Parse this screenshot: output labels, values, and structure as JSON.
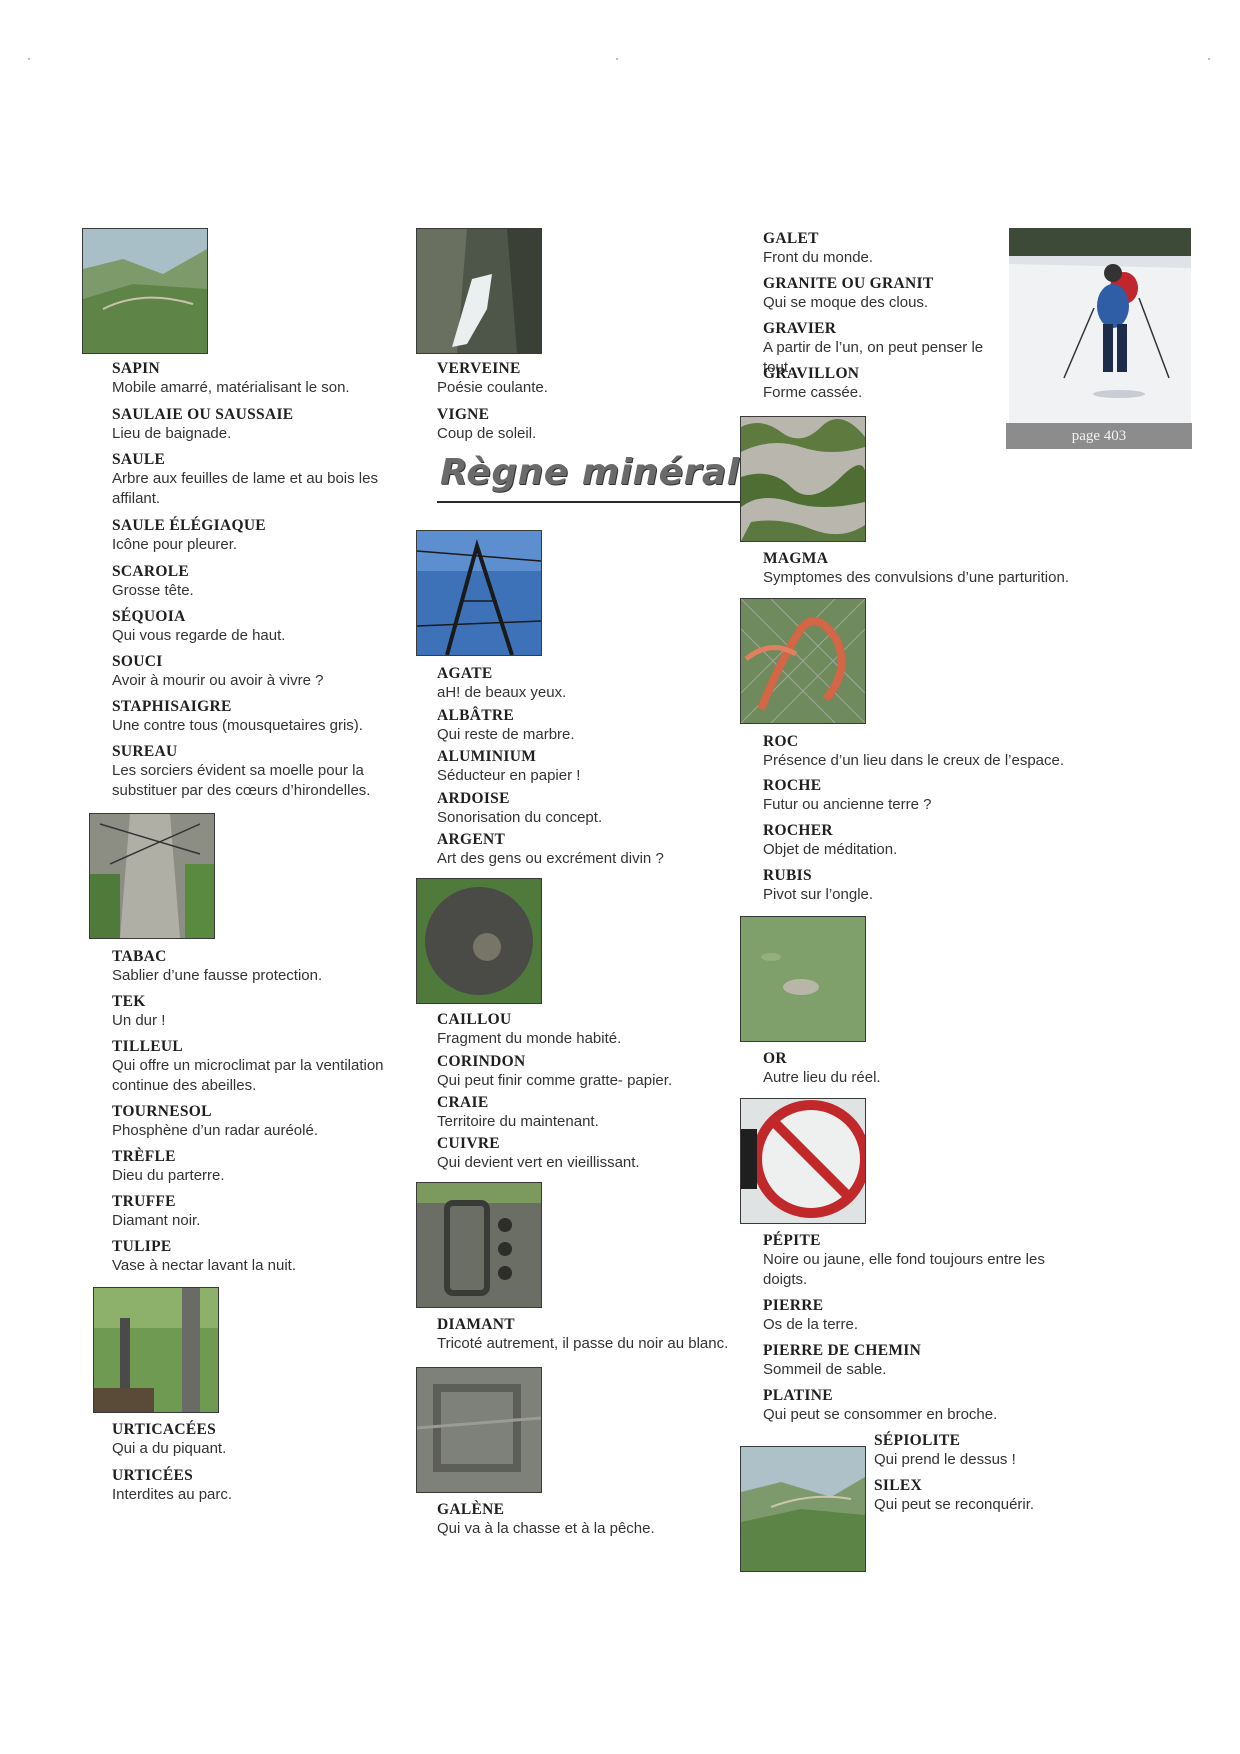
{
  "page": {
    "label": "page 403"
  },
  "section": {
    "title": "Règne minéral"
  },
  "col1": [
    {
      "term": "SAPIN",
      "def": "Mobile amarré, matérialisant le son."
    },
    {
      "term": "SAULAIE OU SAUSSAIE",
      "def": "Lieu de baignade."
    },
    {
      "term": "SAULE",
      "def": "Arbre aux feuilles de lame et au bois les affilant."
    },
    {
      "term": "SAULE ÉLÉGIAQUE",
      "def": "Icône pour pleurer."
    },
    {
      "term": "SCAROLE",
      "def": "Grosse tête."
    },
    {
      "term": "SÉQUOIA",
      "def": "Qui vous regarde de haut."
    },
    {
      "term": "SOUCI",
      "def": "Avoir à mourir ou avoir à vivre ?"
    },
    {
      "term": "STAPHISAIGRE",
      "def": "Une contre tous (mousquetaires gris)."
    },
    {
      "term": "SUREAU",
      "def": "Les sorciers évident sa moelle pour la substituer par des cœurs d’hirondelles."
    },
    {
      "term": "TABAC",
      "def": "Sablier d’une fausse protection."
    },
    {
      "term": "TEK",
      "def": "Un dur !"
    },
    {
      "term": "TILLEUL",
      "def": "Qui offre un microclimat par la ventilation continue des abeilles."
    },
    {
      "term": "TOURNESOL",
      "def": "Phosphène d’un radar auréolé."
    },
    {
      "term": "TRÈFLE",
      "def": "Dieu du parterre."
    },
    {
      "term": "TRUFFE",
      "def": "Diamant noir."
    },
    {
      "term": "TULIPE",
      "def": "Vase à nectar lavant la nuit."
    },
    {
      "term": "URTICACÉES",
      "def": "Qui a du piquant."
    },
    {
      "term": "URTICÉES",
      "def": "Interdites au parc."
    }
  ],
  "col2": [
    {
      "term": "VERVEINE",
      "def": "Poésie coulante."
    },
    {
      "term": "VIGNE",
      "def": "Coup de soleil."
    },
    {
      "term": "AGATE",
      "def": "aH! de beaux yeux."
    },
    {
      "term": "ALBÂTRE",
      "def": "Qui reste de marbre."
    },
    {
      "term": "ALUMINIUM",
      "def": "Séducteur en papier !"
    },
    {
      "term": "ARDOISE",
      "def": "Sonorisation du concept."
    },
    {
      "term": "ARGENT",
      "def": "Art des gens ou excrément divin ?"
    },
    {
      "term": "CAILLOU",
      "def": "Fragment du monde habité."
    },
    {
      "term": "CORINDON",
      "def": "Qui peut finir comme gratte- papier."
    },
    {
      "term": "CRAIE",
      "def": "Territoire du maintenant."
    },
    {
      "term": "CUIVRE",
      "def": "Qui devient vert en vieillissant."
    },
    {
      "term": "DIAMANT",
      "def": "Tricoté autrement, il passe du noir au blanc."
    },
    {
      "term": "GALÈNE",
      "def": "Qui va à la chasse et à la pêche."
    }
  ],
  "col3": [
    {
      "term": "GALET",
      "def": "Front du monde."
    },
    {
      "term": "GRANITE OU GRANIT",
      "def": "Qui se moque des clous."
    },
    {
      "term": "GRAVIER",
      "def": "A partir de l’un, on peut penser le tout."
    },
    {
      "term": "GRAVILLON",
      "def": "Forme cassée."
    },
    {
      "term": "MAGMA",
      "def": "Symptomes des convulsions d’une parturition."
    },
    {
      "term": "ROC",
      "def": "Présence d’un lieu dans le creux de l’espace."
    },
    {
      "term": "ROCHE",
      "def": "Futur ou ancienne terre ?"
    },
    {
      "term": "ROCHER",
      "def": "Objet de méditation."
    },
    {
      "term": "RUBIS",
      "def": "Pivot sur l’ongle."
    },
    {
      "term": "OR",
      "def": "Autre lieu du réel."
    },
    {
      "term": "PÉPITE",
      "def": "Noire ou jaune, elle fond toujours entre les doigts."
    },
    {
      "term": "PIERRE",
      "def": "Os de la terre."
    },
    {
      "term": "PIERRE DE CHEMIN",
      "def": "Sommeil de sable."
    },
    {
      "term": "PLATINE",
      "def": "Qui peut se consommer en broche."
    },
    {
      "term": "SÉPIOLITE",
      "def": "Qui prend le dessus !"
    },
    {
      "term": "SILEX",
      "def": "Qui peut se reconquérir."
    }
  ]
}
